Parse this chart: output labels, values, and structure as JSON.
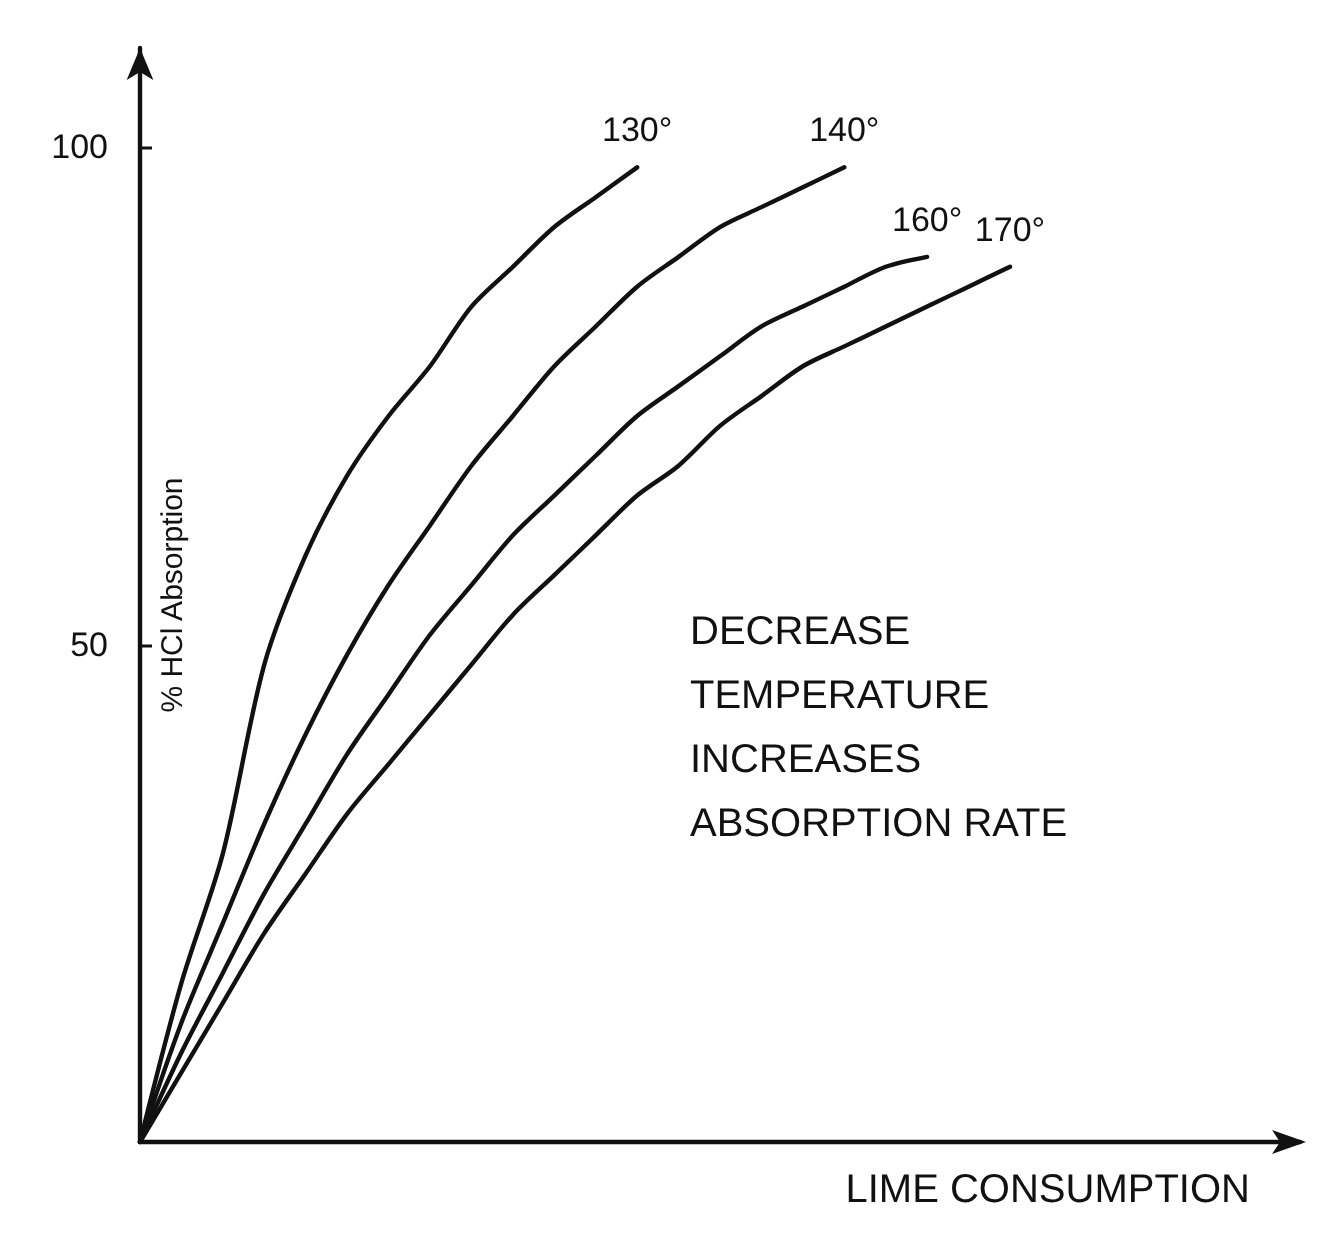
{
  "chart_data": {
    "type": "line",
    "xlabel": "LIME CONSUMPTION",
    "ylabel": "% HCl Absorption",
    "categories": [
      null,
      null,
      null,
      null,
      null,
      null,
      null,
      null,
      null,
      null,
      null,
      null,
      null,
      null,
      null,
      null,
      null,
      null,
      null,
      null,
      null,
      null,
      null,
      null,
      null,
      null,
      null,
      null,
      null
    ],
    "series": [
      {
        "name": "130°",
        "color": "#111111",
        "values": [
          0,
          16,
          29,
          48,
          59,
          67,
          73,
          78,
          84,
          88,
          92,
          95,
          98,
          null,
          null,
          null,
          null,
          null,
          null,
          null,
          null,
          null,
          null,
          null,
          null,
          null,
          null,
          null,
          null
        ]
      },
      {
        "name": "140°",
        "color": "#111111",
        "values": [
          0,
          12,
          22,
          32,
          41,
          49,
          56,
          62,
          68,
          73,
          78,
          82,
          86,
          89,
          92,
          94,
          96,
          98,
          null,
          null,
          null,
          null,
          null,
          null,
          null,
          null,
          null,
          null,
          null
        ]
      },
      {
        "name": "160°",
        "color": "#111111",
        "values": [
          0,
          9,
          17,
          25,
          32,
          39,
          45,
          51,
          56,
          61,
          65,
          69,
          73,
          76,
          79,
          82,
          84,
          86,
          88,
          89,
          null,
          null,
          null,
          null,
          null,
          null,
          null,
          null,
          null
        ]
      },
      {
        "name": "170°",
        "color": "#111111",
        "values": [
          0,
          7,
          14,
          21,
          27,
          33,
          38,
          43,
          48,
          53,
          57,
          61,
          65,
          68,
          72,
          75,
          78,
          80,
          82,
          84,
          86,
          88,
          null,
          null,
          null,
          null,
          null,
          null,
          null
        ]
      }
    ],
    "ylim": [
      0,
      110
    ],
    "yticks": [
      50,
      100
    ],
    "annotations": [
      "DECREASE TEMPERATURE INCREASES ABSORPTION RATE"
    ]
  }
}
